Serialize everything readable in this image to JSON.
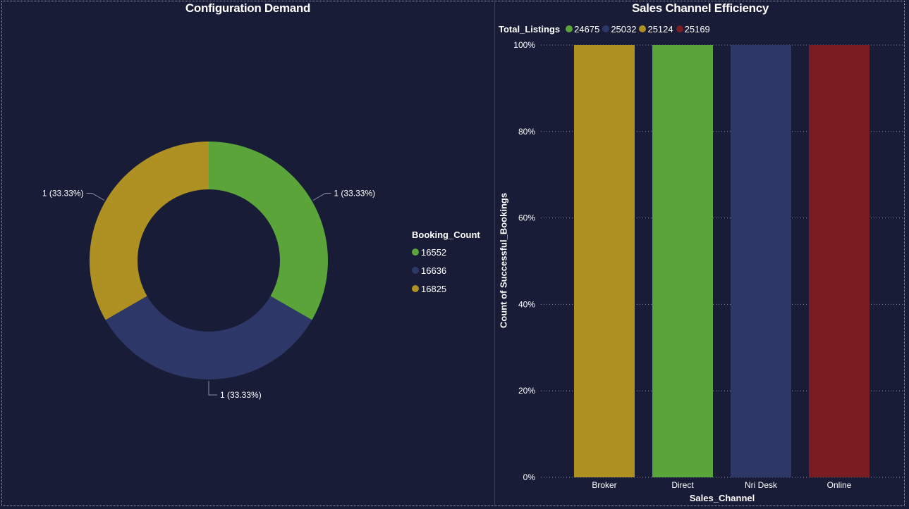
{
  "donut_panel": {
    "title": "Configuration Demand"
  },
  "bar_panel": {
    "title": "Sales Channel Efficiency"
  },
  "colors": {
    "green": "#5aa43a",
    "navy": "#2d3768",
    "gold": "#ae9122",
    "red": "#7a1d23",
    "background": "#181c36"
  },
  "chart_data": [
    {
      "type": "pie",
      "title": "Configuration Demand",
      "legend_title": "Booking_Count",
      "legend_position": "right",
      "slices": [
        {
          "name": "16552",
          "value": 1,
          "label": "1 (33.33%)",
          "color": "#5aa43a"
        },
        {
          "name": "16636",
          "value": 1,
          "label": "1 (33.33%)",
          "color": "#2d3768"
        },
        {
          "name": "16825",
          "value": 1,
          "label": "1 (33.33%)",
          "color": "#ae9122"
        }
      ]
    },
    {
      "type": "bar",
      "title": "Sales Channel Efficiency",
      "legend_title": "Total_Listings",
      "legend_position": "top-left",
      "legend": [
        {
          "name": "24675",
          "color": "#5aa43a"
        },
        {
          "name": "25032",
          "color": "#2d3768"
        },
        {
          "name": "25124",
          "color": "#ae9122"
        },
        {
          "name": "25169",
          "color": "#7a1d23"
        }
      ],
      "categories": [
        "Broker",
        "Direct",
        "Nri Desk",
        "Online"
      ],
      "values": [
        100,
        100,
        100,
        100
      ],
      "bar_colors": [
        "#ae9122",
        "#5aa43a",
        "#2d3768",
        "#7a1d23"
      ],
      "xlabel": "Sales_Channel",
      "ylabel": "Count of Successful_Bookings",
      "yticks": [
        "0%",
        "20%",
        "40%",
        "60%",
        "80%",
        "100%"
      ],
      "ylim": [
        0,
        100
      ],
      "grid": true
    }
  ]
}
